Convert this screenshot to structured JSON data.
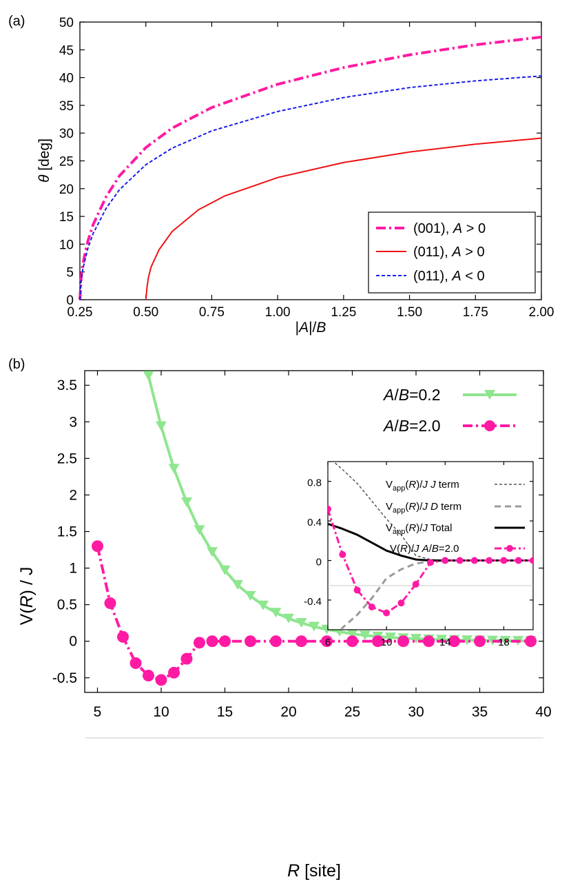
{
  "chart_data": [
    {
      "panel_label": "(a)",
      "type": "line",
      "xlabel": "|A|/B",
      "ylabel": "θ [deg]",
      "xlim": [
        0.25,
        2.0
      ],
      "ylim": [
        0,
        50
      ],
      "x_ticks": [
        "0.25",
        "0.50",
        "0.75",
        "1.00",
        "1.25",
        "1.50",
        "1.75",
        "2.00"
      ],
      "y_ticks": [
        "0",
        "5",
        "10",
        "15",
        "20",
        "25",
        "30",
        "35",
        "40",
        "45",
        "50"
      ],
      "legend_position": "bottom-right",
      "series": [
        {
          "name": "(001), A > 0",
          "color": "#ff1aa3",
          "style": "dash-dot",
          "x": [
            0.25,
            0.255,
            0.26,
            0.27,
            0.28,
            0.3,
            0.35,
            0.4,
            0.5,
            0.6,
            0.75,
            1.0,
            1.25,
            1.5,
            1.75,
            2.0
          ],
          "y": [
            0.0,
            4.0,
            6.0,
            8.5,
            10.5,
            13.5,
            18.6,
            22.3,
            27.4,
            30.9,
            34.6,
            38.8,
            41.8,
            44.1,
            45.9,
            47.3
          ]
        },
        {
          "name": "(011), A > 0",
          "color": "#ee1111",
          "style": "solid",
          "x": [
            0.5,
            0.505,
            0.51,
            0.52,
            0.55,
            0.6,
            0.7,
            0.8,
            1.0,
            1.25,
            1.5,
            1.75,
            2.0
          ],
          "y": [
            0.0,
            2.4,
            4.0,
            5.9,
            9.0,
            12.3,
            16.2,
            18.7,
            22.0,
            24.7,
            26.6,
            28.0,
            29.1
          ]
        },
        {
          "name": "(011), A < 0",
          "color": "#1a1aee",
          "style": "dashed",
          "x": [
            0.25,
            0.255,
            0.26,
            0.27,
            0.28,
            0.3,
            0.35,
            0.4,
            0.5,
            0.6,
            0.75,
            1.0,
            1.25,
            1.5,
            1.75,
            2.0
          ],
          "y": [
            0.0,
            3.6,
            5.2,
            7.3,
            9.2,
            11.9,
            16.5,
            19.8,
            24.3,
            27.3,
            30.4,
            33.9,
            36.4,
            38.2,
            39.4,
            40.3
          ]
        }
      ]
    },
    {
      "panel_label": "(b)",
      "type": "line",
      "xlabel": "R [site]",
      "ylabel": "V(R) / J",
      "xlim": [
        4,
        40
      ],
      "ylim": [
        -0.7,
        3.7
      ],
      "x_ticks": [
        5,
        10,
        15,
        20,
        25,
        30,
        35,
        40
      ],
      "y_ticks": [
        "-0.5",
        "0",
        "0.5",
        "1",
        "1.5",
        "2",
        "2.5",
        "3",
        "3.5"
      ],
      "legend_position": "top-right",
      "series": [
        {
          "name": "A/B=0.2",
          "color": "#8ee68e",
          "marker": "triangle-down",
          "x": [
            9,
            10,
            11,
            12,
            13,
            14,
            15,
            16,
            17,
            18,
            19,
            20,
            21,
            22,
            23,
            24,
            25,
            26,
            27,
            28,
            29,
            30,
            31,
            32,
            33,
            34,
            35,
            36,
            37,
            38,
            39
          ],
          "y": [
            3.63,
            2.94,
            2.36,
            1.9,
            1.52,
            1.22,
            0.97,
            0.77,
            0.62,
            0.49,
            0.39,
            0.31,
            0.25,
            0.2,
            0.16,
            0.13,
            0.1,
            0.08,
            0.065,
            0.052,
            0.042,
            0.034,
            0.027,
            0.022,
            0.018,
            0.014,
            0.011,
            0.009,
            0.007,
            0.006,
            0.005
          ]
        },
        {
          "name": "A/B=2.0",
          "color": "#ff1aa3",
          "marker": "circle",
          "style": "dash-dot",
          "x": [
            5,
            6,
            7,
            8,
            9,
            10,
            11,
            12,
            13,
            14,
            15,
            17,
            19,
            21,
            23,
            25,
            27,
            29,
            31,
            33,
            35,
            39
          ],
          "y": [
            1.3,
            0.52,
            0.06,
            -0.3,
            -0.47,
            -0.53,
            -0.43,
            -0.24,
            -0.02,
            0.0,
            0.0,
            0.0,
            0.0,
            0.0,
            0.0,
            0.0,
            0.0,
            0.0,
            0.0,
            0.0,
            0.0,
            0.0
          ]
        }
      ],
      "inset": {
        "xlim": [
          6,
          20
        ],
        "ylim": [
          -0.7,
          1.0
        ],
        "x_ticks": [
          6,
          10,
          14,
          18
        ],
        "y_ticks": [
          "-0.4",
          "0",
          "0.4",
          "0.8"
        ],
        "legend_position": "top-right",
        "series": [
          {
            "name": "Vapp(R)/J J term",
            "label_base": "V",
            "label_sub": "app",
            "label_rest": "(R)/J J term",
            "color": "#555555",
            "style": "thin-dashed",
            "x": [
              6,
              7,
              8,
              9,
              10,
              11,
              12,
              13,
              14,
              15,
              16,
              17,
              18,
              19,
              20
            ],
            "y": [
              1.05,
              0.92,
              0.78,
              0.6,
              0.42,
              0.26,
              0.05,
              0.01,
              0.0,
              0.0,
              0.0,
              0.0,
              0.0,
              0.0,
              0.0
            ]
          },
          {
            "name": "Vapp(R)/J D term",
            "label_base": "V",
            "label_sub": "app",
            "label_rest": "(R)/J D term",
            "color": "#9a9a9a",
            "style": "thick-dashed",
            "x": [
              6.9,
              7,
              8,
              9,
              10,
              11,
              12,
              13,
              14,
              15,
              16,
              17,
              18,
              19,
              20
            ],
            "y": [
              -0.7,
              -0.68,
              -0.55,
              -0.38,
              -0.18,
              -0.09,
              -0.03,
              -0.01,
              0.0,
              0.0,
              0.0,
              0.0,
              0.0,
              0.0,
              0.0
            ]
          },
          {
            "name": "Vapp(R)/J Total",
            "label_base": "V",
            "label_sub": "app",
            "label_rest": "(R)/J Total",
            "color": "#000000",
            "style": "solid",
            "x": [
              6,
              7,
              8,
              9,
              10,
              11,
              12,
              13,
              14,
              15,
              16,
              17,
              18,
              19,
              20
            ],
            "y": [
              0.37,
              0.32,
              0.26,
              0.18,
              0.1,
              0.05,
              0.01,
              0.0,
              0.0,
              0.0,
              0.0,
              0.0,
              0.0,
              0.0,
              0.0
            ]
          },
          {
            "name": "V(R)/J A/B=2.0",
            "label_base": "V(R)/J A/B=2.0",
            "label_sub": "",
            "label_rest": "",
            "color": "#ff1aa3",
            "style": "dash-dot",
            "marker": "circle",
            "x": [
              6,
              7,
              8,
              9,
              10,
              11,
              12,
              13,
              14,
              15,
              16,
              17,
              18,
              19,
              20
            ],
            "y": [
              0.52,
              0.06,
              -0.3,
              -0.47,
              -0.53,
              -0.43,
              -0.24,
              -0.02,
              0.0,
              0.0,
              0.0,
              0.0,
              0.0,
              0.0,
              0.0
            ]
          }
        ]
      }
    }
  ]
}
